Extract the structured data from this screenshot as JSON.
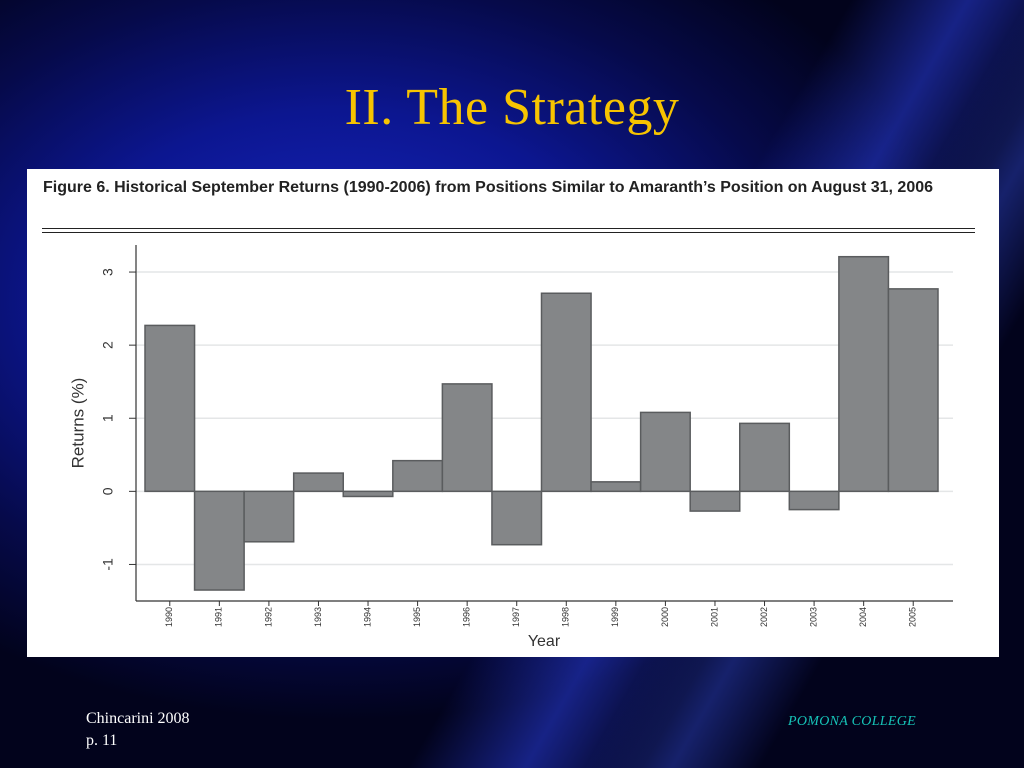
{
  "slide": {
    "title": "II.  The Strategy",
    "footer_left_line1": "Chincarini 2008",
    "footer_left_line2": "p. 11",
    "footer_right": "POMONA COLLEGE"
  },
  "figure": {
    "caption": "Figure 6. Historical September Returns (1990-2006) from Positions Similar to Amaranth’s Position on August 31, 2006"
  },
  "colors": {
    "title": "#f7c400",
    "bar_fill": "#848688",
    "bar_stroke": "#5a5c5e",
    "footer_right": "#16c3b7"
  },
  "chart_data": {
    "type": "bar",
    "categories": [
      "1990",
      "1991",
      "1992",
      "1993",
      "1994",
      "1995",
      "1996",
      "1997",
      "1998",
      "1999",
      "2000",
      "2001",
      "2002",
      "2003",
      "2004",
      "2005"
    ],
    "values": [
      2.27,
      -1.35,
      -0.69,
      0.25,
      -0.07,
      0.42,
      1.47,
      -0.73,
      2.71,
      0.13,
      1.08,
      -0.27,
      0.93,
      -0.25,
      3.21,
      2.77
    ],
    "xlabel": "Year",
    "ylabel": "Returns (%)",
    "ylim": [
      -1.5,
      3.37
    ],
    "yticks": [
      -1,
      0,
      1,
      2,
      3
    ],
    "grid": true
  }
}
